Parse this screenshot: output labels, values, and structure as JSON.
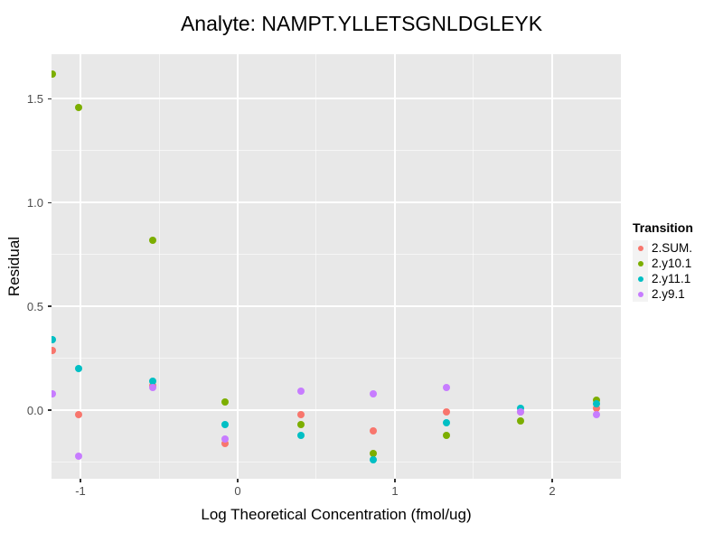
{
  "title": "Analyte: NAMPT.YLLETSGNLDGLEYK",
  "axis": {
    "x_label": "Log Theoretical Concentration (fmol/ug)",
    "y_label": "Residual"
  },
  "legend": {
    "title": "Transition"
  },
  "colors": {
    "panel_background": "#E8E8E8",
    "grid_line": "#FFFFFF",
    "tick_label": "#4D4D4D",
    "series_red": "#F8766D",
    "series_green": "#7CAE00",
    "series_teal": "#00BFC4",
    "series_purple": "#C77CFF"
  },
  "chart_data": {
    "type": "scatter",
    "title": "Analyte: NAMPT.YLLETSGNLDGLEYK",
    "xlabel": "Log Theoretical Concentration (fmol/ug)",
    "ylabel": "Residual",
    "xlim": [
      -1.184,
      2.437
    ],
    "ylim": [
      -0.33,
      1.715
    ],
    "x_major_ticks": [
      -1,
      0,
      1,
      2
    ],
    "x_tick_labels": [
      "-1",
      "0",
      "1",
      "2"
    ],
    "y_major_ticks": [
      0.0,
      0.5,
      1.0,
      1.5
    ],
    "y_tick_labels": [
      "0.0",
      "0.5",
      "1.0",
      "1.5"
    ],
    "x_minor_ticks": [
      -0.5,
      0.5,
      1.5
    ],
    "y_minor_ticks": [
      -0.25,
      0.25,
      0.75,
      1.25
    ],
    "grid": "white major+minor gridlines on gray panel",
    "legend_title": "Transition",
    "legend_position": "right",
    "x": [
      -1.18,
      -1.01,
      -0.54,
      -0.08,
      0.4,
      0.86,
      1.33,
      1.8,
      2.28
    ],
    "series": [
      {
        "name": "2.SUM.",
        "color": "#F8766D",
        "values": [
          0.29,
          -0.02,
          0.12,
          -0.16,
          -0.02,
          -0.1,
          -0.01,
          -0.01,
          0.01
        ]
      },
      {
        "name": "2.y10.1",
        "color": "#7CAE00",
        "values": [
          1.62,
          1.46,
          0.82,
          0.04,
          -0.07,
          -0.21,
          -0.12,
          -0.05,
          0.05
        ]
      },
      {
        "name": "2.y11.1",
        "color": "#00BFC4",
        "values": [
          0.34,
          0.2,
          0.14,
          -0.07,
          -0.12,
          -0.24,
          -0.06,
          0.01,
          0.03
        ]
      },
      {
        "name": "2.y9.1",
        "color": "#C77CFF",
        "values": [
          0.08,
          -0.22,
          0.11,
          -0.14,
          0.09,
          0.08,
          0.11,
          -0.01,
          -0.02
        ]
      }
    ]
  }
}
